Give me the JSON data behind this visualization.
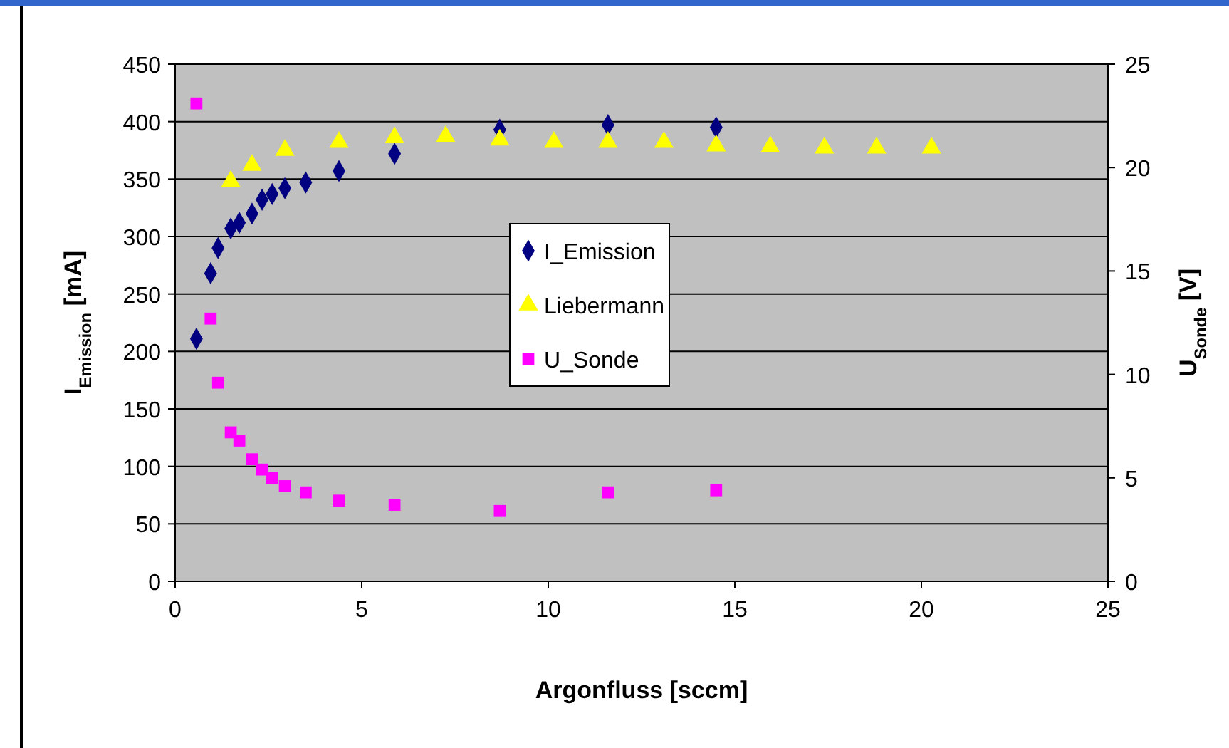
{
  "chart_data": {
    "type": "scatter",
    "xlabel": "Argonfluss [sccm]",
    "ylabel": "I$_{Emission}$ [mA]",
    "y2label": "U$_{Sonde}$ [V]",
    "xlim": [
      0,
      25
    ],
    "xticks": [
      0,
      5,
      10,
      15,
      20,
      25
    ],
    "ylim": [
      0,
      450
    ],
    "yticks": [
      0,
      50,
      100,
      150,
      200,
      250,
      300,
      350,
      400,
      450
    ],
    "y2lim": [
      0,
      25
    ],
    "y2ticks": [
      0,
      5,
      10,
      15,
      20,
      25
    ],
    "grid": "y",
    "legend": "center",
    "series": [
      {
        "name": "I_Emission",
        "color": "#000080",
        "marker": "diamond",
        "x": [
          0.57,
          0.95,
          1.15,
          1.49,
          1.72,
          2.06,
          2.33,
          2.6,
          2.94,
          3.5,
          4.39,
          5.88,
          8.7,
          11.6,
          14.5
        ],
        "values": [
          211,
          268,
          290,
          307,
          312,
          320,
          332,
          337,
          342,
          347,
          357,
          372,
          393,
          397,
          395
        ]
      },
      {
        "name": "Liebermann",
        "color": "#ffff00",
        "marker": "triangle",
        "x": [
          1.49,
          2.06,
          2.94,
          4.39,
          5.88,
          7.25,
          8.7,
          10.15,
          11.6,
          13.1,
          14.5,
          15.95,
          17.4,
          18.8,
          20.27
        ],
        "values": [
          348,
          362,
          375,
          382,
          386,
          387,
          384,
          382,
          382,
          382,
          379,
          378,
          377,
          377,
          377
        ]
      },
      {
        "name": "U_Sonde",
        "color": "#ff00ff",
        "marker": "square",
        "axis": "y2",
        "x": [
          0.57,
          0.95,
          1.15,
          1.49,
          1.72,
          2.06,
          2.33,
          2.6,
          2.94,
          3.5,
          4.39,
          5.88,
          8.7,
          11.6,
          14.5
        ],
        "values": [
          23.1,
          12.7,
          9.6,
          7.2,
          6.8,
          5.9,
          5.4,
          5.0,
          4.6,
          4.3,
          3.9,
          3.7,
          3.4,
          4.3,
          4.4
        ]
      }
    ]
  }
}
